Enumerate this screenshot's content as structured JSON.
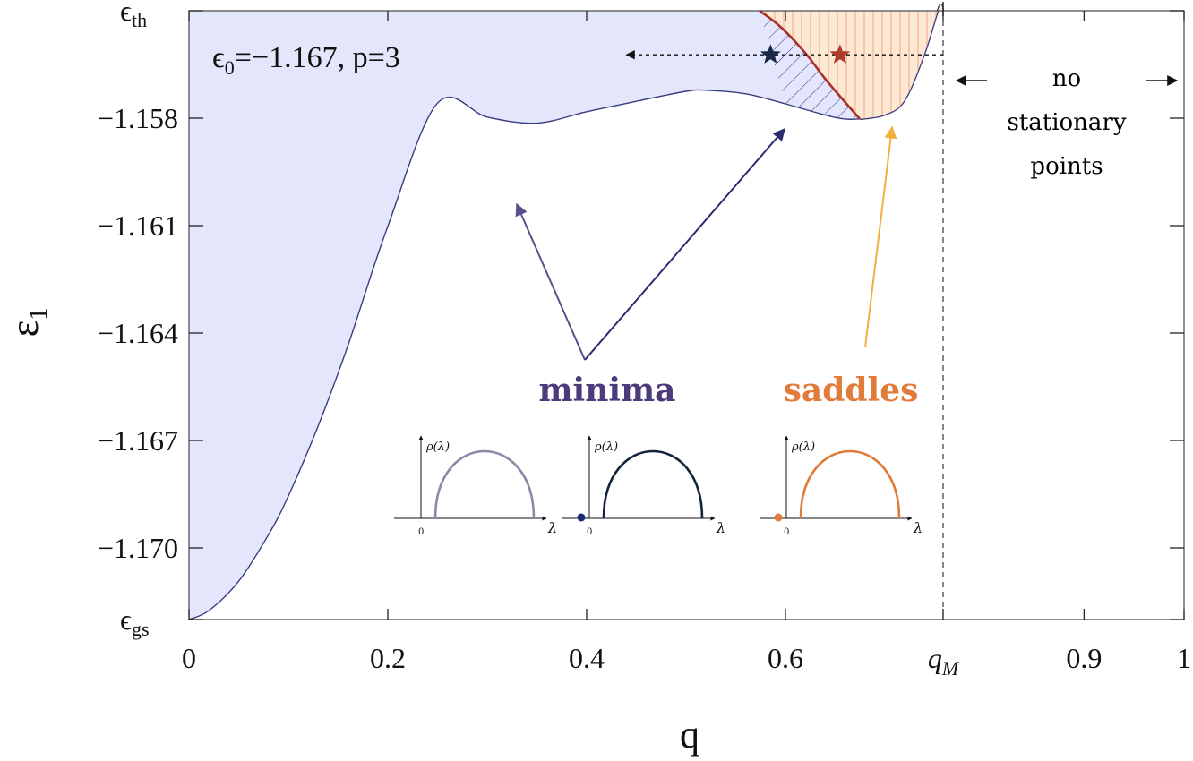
{
  "chart_data": {
    "type": "area",
    "xlabel": "q",
    "ylabel": "ε",
    "ylabel_sub": "1",
    "xlim": [
      0,
      1.0
    ],
    "ylim": [
      -1.172,
      -1.155
    ],
    "x_ticks": [
      {
        "value": 0,
        "label": "0"
      },
      {
        "value": 0.2,
        "label": "0.2"
      },
      {
        "value": 0.4,
        "label": "0.4"
      },
      {
        "value": 0.6,
        "label": "0.6"
      },
      {
        "value": 0.759,
        "label": "q",
        "sub": "M",
        "italic": true
      },
      {
        "value": 0.9,
        "label": "0.9"
      },
      {
        "value": 1.0,
        "label": "1"
      }
    ],
    "y_ticks": [
      {
        "value": -1.155,
        "label": "ϵ",
        "sub": "th"
      },
      {
        "value": -1.158,
        "label": "−1.158"
      },
      {
        "value": -1.161,
        "label": "−1.161"
      },
      {
        "value": -1.164,
        "label": "−1.164"
      },
      {
        "value": -1.167,
        "label": "−1.167"
      },
      {
        "value": -1.17,
        "label": "−1.170"
      },
      {
        "value": -1.172,
        "label": "ϵ",
        "sub": "gs"
      }
    ],
    "params": {
      "prefix": "ϵ",
      "sub": "0",
      "text": "=−1.167, p=3"
    },
    "boundary": {
      "x": [
        0.0,
        0.02,
        0.05,
        0.08,
        0.1,
        0.13,
        0.16,
        0.2,
        0.25,
        0.3,
        0.35,
        0.4,
        0.45,
        0.5,
        0.52,
        0.56,
        0.6,
        0.65,
        0.675,
        0.7,
        0.72,
        0.74,
        0.755,
        0.759
      ],
      "y": [
        -1.172,
        -1.17175,
        -1.17093,
        -1.16963,
        -1.16855,
        -1.16659,
        -1.16434,
        -1.16102,
        -1.15758,
        -1.15797,
        -1.15814,
        -1.15782,
        -1.15753,
        -1.15725,
        -1.15722,
        -1.15732,
        -1.1576,
        -1.15798,
        -1.15802,
        -1.1579,
        -1.1575,
        -1.1562,
        -1.1549,
        -1.155
      ]
    },
    "minima_region_end": 0.675,
    "saddle_region": {
      "x_start": 0.574,
      "x_end": 0.759
    },
    "saddle_curve": {
      "x": [
        0.574,
        0.595,
        0.62,
        0.64,
        0.66,
        0.675
      ],
      "y": [
        -1.155,
        -1.15545,
        -1.15618,
        -1.1569,
        -1.15755,
        -1.15802
      ]
    },
    "markers": [
      {
        "name": "minimum-star",
        "x": 0.585,
        "y": -1.15623,
        "color": "#1a2848"
      },
      {
        "name": "saddle-star",
        "x": 0.655,
        "y": -1.15623,
        "color": "#b03a2e"
      }
    ],
    "dashed_arrow": {
      "x_from": 0.759,
      "x_to": 0.44,
      "y": -1.15623
    },
    "qM_value": 0.759,
    "no_stationary": {
      "lines": [
        "no",
        "stationary",
        "points"
      ]
    },
    "labels": {
      "minima": {
        "text": "minima",
        "color": "#4b3b7a"
      },
      "saddles": {
        "text": "saddles",
        "color": "#e07b39"
      }
    },
    "insets": [
      {
        "name": "inset-1",
        "ylabel": "ρ(λ)",
        "xlabel": "λ",
        "zero": "0",
        "color": "#8a8aa8",
        "dot": false
      },
      {
        "name": "inset-2",
        "ylabel": "ρ(λ)",
        "xlabel": "λ",
        "zero": "0",
        "color": "#14243a",
        "dot": true,
        "dot_color": "#1a2a78"
      },
      {
        "name": "inset-3",
        "ylabel": "ρ(λ)",
        "xlabel": "λ",
        "zero": "0",
        "color": "#e07b39",
        "dot": true,
        "dot_color": "#e07b39"
      }
    ],
    "colors": {
      "fill": "#e4e6fb",
      "curve": "#3a3c80",
      "saddle_fill": "#fde9d3",
      "saddle_lines": "#f0a888",
      "hatch": "#3a3c90",
      "saddle_curve": "#a8322a",
      "arrow_yellow": "#f0b040",
      "arrow_purple": "#5a4f8a",
      "arrow_navy": "#2a2a70"
    }
  }
}
